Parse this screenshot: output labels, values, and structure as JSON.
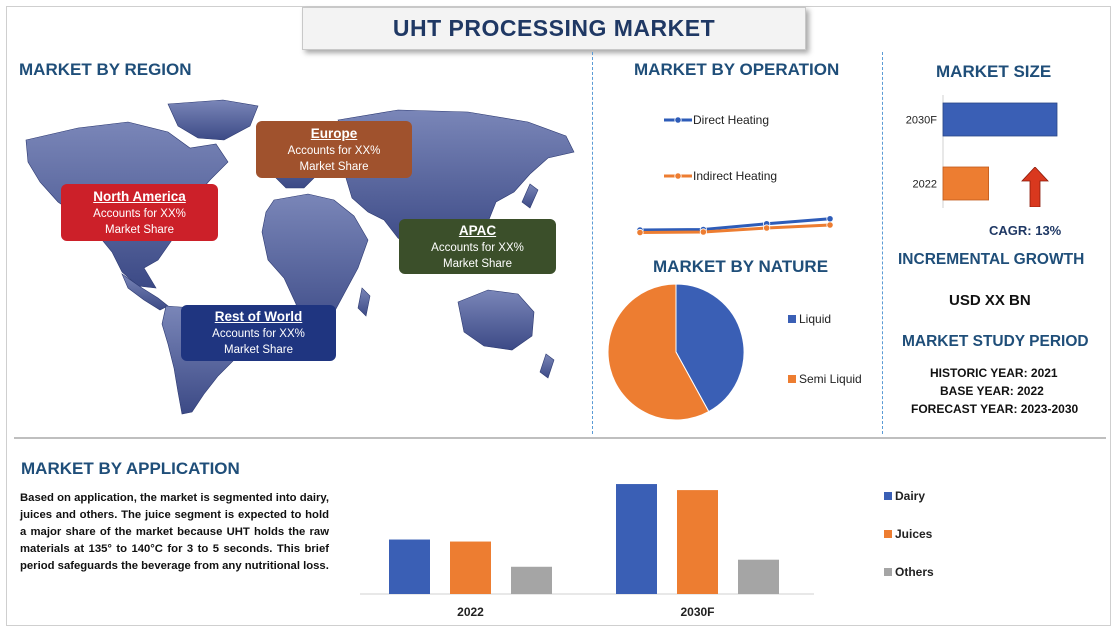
{
  "header": {
    "title": "UHT PROCESSING MARKET"
  },
  "sections": {
    "region": "MARKET BY REGION",
    "operation": "MARKET BY OPERATION",
    "size": "MARKET SIZE",
    "nature": "MARKET BY NATURE",
    "incremental": "INCREMENTAL GROWTH",
    "study": "MARKET STUDY PERIOD",
    "application": "MARKET BY APPLICATION"
  },
  "regions": {
    "europe": {
      "name": "Europe",
      "line1": "Accounts for XX%",
      "line2": "Market Share",
      "color": "#a0522d"
    },
    "north_america": {
      "name": "North America",
      "line1": "Accounts for XX%",
      "line2": "Market Share",
      "color": "#cc2029"
    },
    "apac": {
      "name": "APAC",
      "line1": "Accounts for XX%",
      "line2": "Market Share",
      "color": "#3b4f2a"
    },
    "row": {
      "name": "Rest of World",
      "line1": "Accounts for XX%",
      "line2": "Market Share",
      "color": "#1f3580"
    }
  },
  "size": {
    "cagr": "CAGR:  13%",
    "arrow_color": "#d9381e"
  },
  "incremental": {
    "value": "USD XX BN"
  },
  "study": {
    "historic": "HISTORIC YEAR: 2021",
    "base": "BASE YEAR: 2022",
    "forecast": "FORECAST YEAR: 2023-2030"
  },
  "application": {
    "text": "Based on application, the market is segmented into dairy, juices and others. The juice segment is expected to hold a major share of the market because UHT holds the raw materials at 135° to 140°C for 3 to 5 seconds. This brief period safeguards the beverage from any nutritional loss."
  },
  "chart_data": [
    {
      "type": "line",
      "id": "operation",
      "x": [
        1,
        2,
        3,
        4
      ],
      "series": [
        {
          "name": "Direct Heating",
          "values": [
            4.0,
            4.2,
            6.5,
            8.5
          ],
          "color": "#2e5cb8"
        },
        {
          "name": "Indirect Heating",
          "values": [
            3.0,
            3.2,
            4.8,
            6.0
          ],
          "color": "#ed7d31"
        }
      ],
      "ylim": [
        0,
        60
      ]
    },
    {
      "type": "bar",
      "id": "size",
      "orientation": "horizontal",
      "categories": [
        "2030F",
        "2022"
      ],
      "values": [
        100,
        40
      ],
      "colors": [
        "#3a5fb5",
        "#ed7d31"
      ],
      "xlim": [
        0,
        100
      ]
    },
    {
      "type": "pie",
      "id": "nature",
      "labels": [
        "Liquid",
        "Semi Liquid"
      ],
      "values": [
        42,
        58
      ],
      "colors": [
        "#3a5fb5",
        "#ed7d31"
      ]
    },
    {
      "type": "bar",
      "id": "application",
      "categories": [
        "2022",
        "2030F"
      ],
      "series": [
        {
          "name": "Dairy",
          "values": [
            54,
            109
          ],
          "color": "#3a5fb5"
        },
        {
          "name": "Juices",
          "values": [
            52,
            103
          ],
          "color": "#ed7d31"
        },
        {
          "name": "Others",
          "values": [
            27,
            34
          ],
          "color": "#a5a5a5"
        }
      ],
      "ylim": [
        0,
        115
      ]
    }
  ]
}
